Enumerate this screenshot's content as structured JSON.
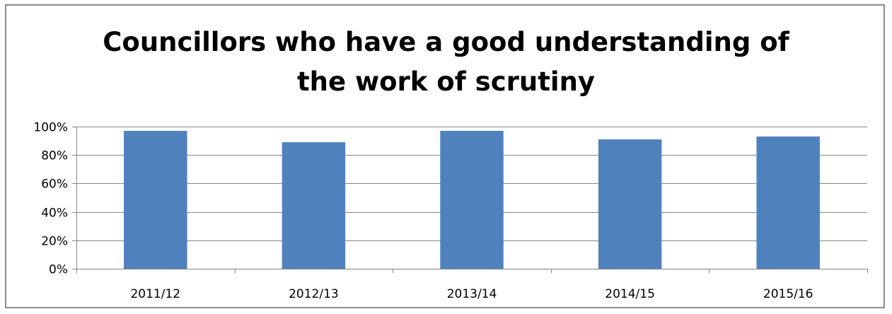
{
  "chart_data": {
    "type": "bar",
    "title_lines": [
      "Councillors who have a good understanding of",
      "the work of scrutiny"
    ],
    "categories": [
      "2011/12",
      "2012/13",
      "2013/14",
      "2014/15",
      "2015/16"
    ],
    "series": [
      {
        "values": [
          0.97,
          0.89,
          0.97,
          0.91,
          0.93
        ]
      }
    ],
    "ylim": [
      0,
      1
    ],
    "yticks": [
      0,
      0.2,
      0.4,
      0.6,
      0.8,
      1
    ],
    "ytick_labels": [
      "0%",
      "20%",
      "40%",
      "60%",
      "80%",
      "100%"
    ],
    "grid": true,
    "legend": "none",
    "colors": {
      "bar": "#4f81bd",
      "grid": "#868686",
      "axis": "#868686"
    }
  }
}
